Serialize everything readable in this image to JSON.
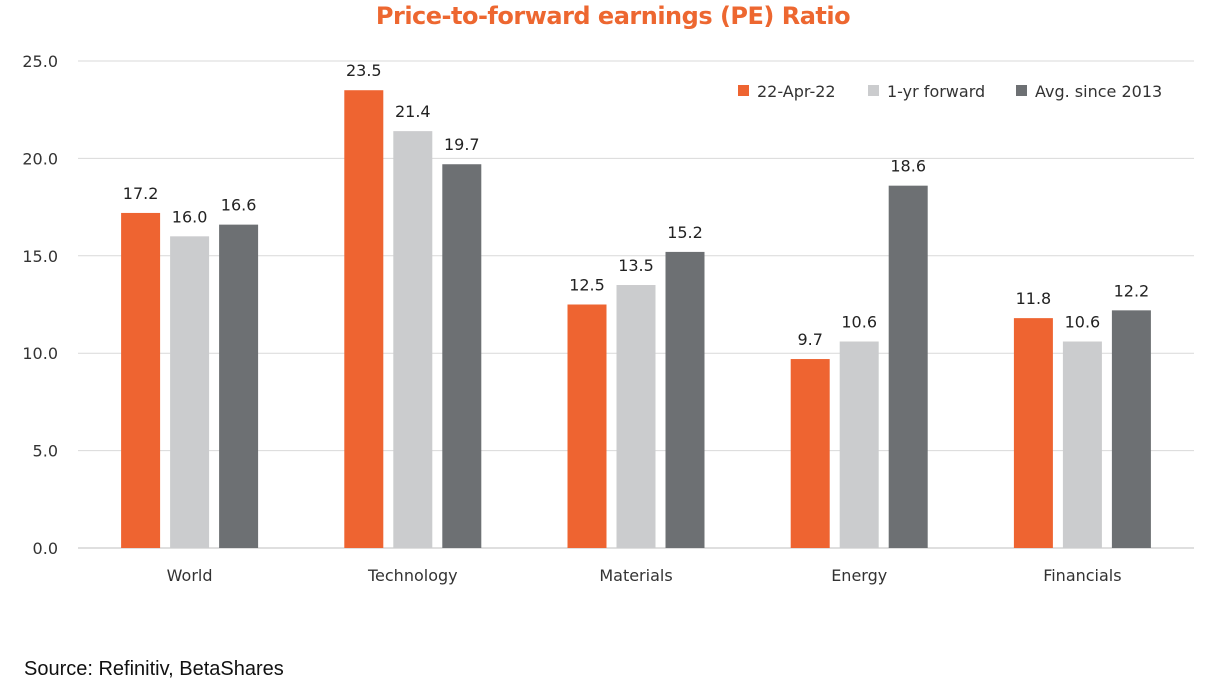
{
  "source": "Source:  Refinitiv,  BetaShares",
  "chart_data": {
    "type": "bar",
    "title": "Price-to-forward earnings (PE) Ratio",
    "title_color": "#ED6730",
    "categories": [
      "World",
      "Technology",
      "Materials",
      "Energy",
      "Financials"
    ],
    "series": [
      {
        "name": "22-Apr-22",
        "color": "#EE6431",
        "values": [
          17.2,
          23.5,
          12.5,
          9.7,
          11.8
        ],
        "labels": [
          "17.2",
          "23.5",
          "12.5",
          "9.7",
          "11.8"
        ]
      },
      {
        "name": "1-yr forward",
        "color": "#CBCCCE",
        "values": [
          16.0,
          21.4,
          13.5,
          10.6,
          10.6
        ],
        "labels": [
          "16.0",
          "21.4",
          "13.5",
          "10.6",
          "10.6"
        ]
      },
      {
        "name": "Avg. since 2013",
        "color": "#6D7073",
        "values": [
          16.6,
          19.7,
          15.2,
          18.6,
          12.2
        ],
        "labels": [
          "16.6",
          "19.7",
          "15.2",
          "18.6",
          "12.2"
        ]
      }
    ],
    "ylim": [
      0,
      25
    ],
    "yticks": [
      "0.0",
      "5.0",
      "10.0",
      "15.0",
      "20.0",
      "25.0"
    ],
    "ytick_values": [
      0,
      5,
      10,
      15,
      20,
      25
    ],
    "grid": true,
    "legend_position": "top-right",
    "xlabel": "",
    "ylabel": ""
  }
}
